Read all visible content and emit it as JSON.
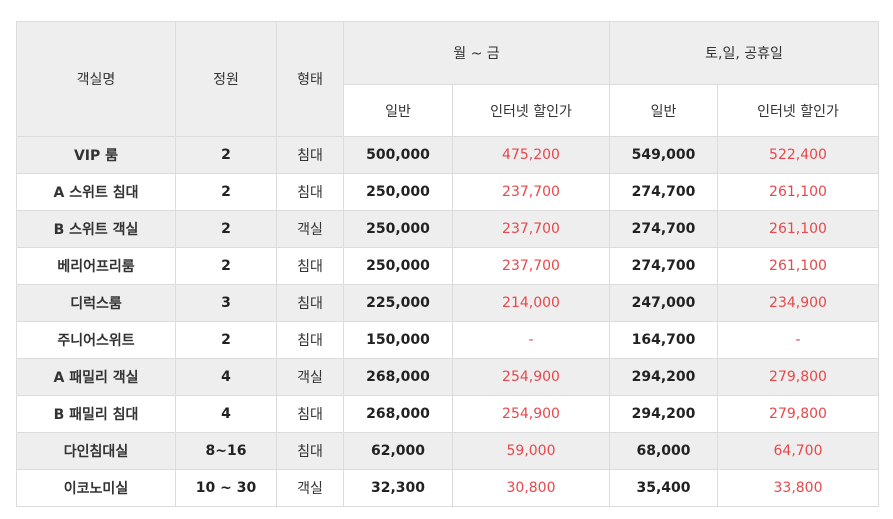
{
  "header": {
    "room_name": "객실명",
    "capacity": "정원",
    "type": "형태",
    "weekday_group": "월 ~ 금",
    "weekend_group": "토,일, 공휴일",
    "normal": "일반",
    "internet_discount": "인터넷 할인가"
  },
  "rows": [
    {
      "name": "VIP 룸",
      "capacity": "2",
      "type": "침대",
      "weekday_normal": "500,000",
      "weekday_discount": "475,200",
      "weekend_normal": "549,000",
      "weekend_discount": "522,400"
    },
    {
      "name": "A 스위트 침대",
      "capacity": "2",
      "type": "침대",
      "weekday_normal": "250,000",
      "weekday_discount": "237,700",
      "weekend_normal": "274,700",
      "weekend_discount": "261,100"
    },
    {
      "name": "B 스위트 객실",
      "capacity": "2",
      "type": "객실",
      "weekday_normal": "250,000",
      "weekday_discount": "237,700",
      "weekend_normal": "274,700",
      "weekend_discount": "261,100"
    },
    {
      "name": "베리어프리룸",
      "capacity": "2",
      "type": "침대",
      "weekday_normal": "250,000",
      "weekday_discount": "237,700",
      "weekend_normal": "274,700",
      "weekend_discount": "261,100"
    },
    {
      "name": "디럭스룸",
      "capacity": "3",
      "type": "침대",
      "weekday_normal": "225,000",
      "weekday_discount": "214,000",
      "weekend_normal": "247,000",
      "weekend_discount": "234,900"
    },
    {
      "name": "주니어스위트",
      "capacity": "2",
      "type": "침대",
      "weekday_normal": "150,000",
      "weekday_discount": "-",
      "weekend_normal": "164,700",
      "weekend_discount": "-"
    },
    {
      "name": "A 패밀리 객실",
      "capacity": "4",
      "type": "객실",
      "weekday_normal": "268,000",
      "weekday_discount": "254,900",
      "weekend_normal": "294,200",
      "weekend_discount": "279,800"
    },
    {
      "name": "B 패밀리 침대",
      "capacity": "4",
      "type": "침대",
      "weekday_normal": "268,000",
      "weekday_discount": "254,900",
      "weekend_normal": "294,200",
      "weekend_discount": "279,800"
    },
    {
      "name": "다인침대실",
      "capacity": "8~16",
      "type": "침대",
      "weekday_normal": "62,000",
      "weekday_discount": "59,000",
      "weekend_normal": "68,000",
      "weekend_discount": "64,700"
    },
    {
      "name": "이코노미실",
      "capacity": "10 ~ 30",
      "type": "객실",
      "weekday_normal": "32,300",
      "weekday_discount": "30,800",
      "weekend_normal": "35,400",
      "weekend_discount": "33,800"
    }
  ],
  "colors": {
    "header_bg": "#eeeeee",
    "border": "#dcdcdc",
    "discount_text": "#e8474b",
    "text": "#333333"
  }
}
